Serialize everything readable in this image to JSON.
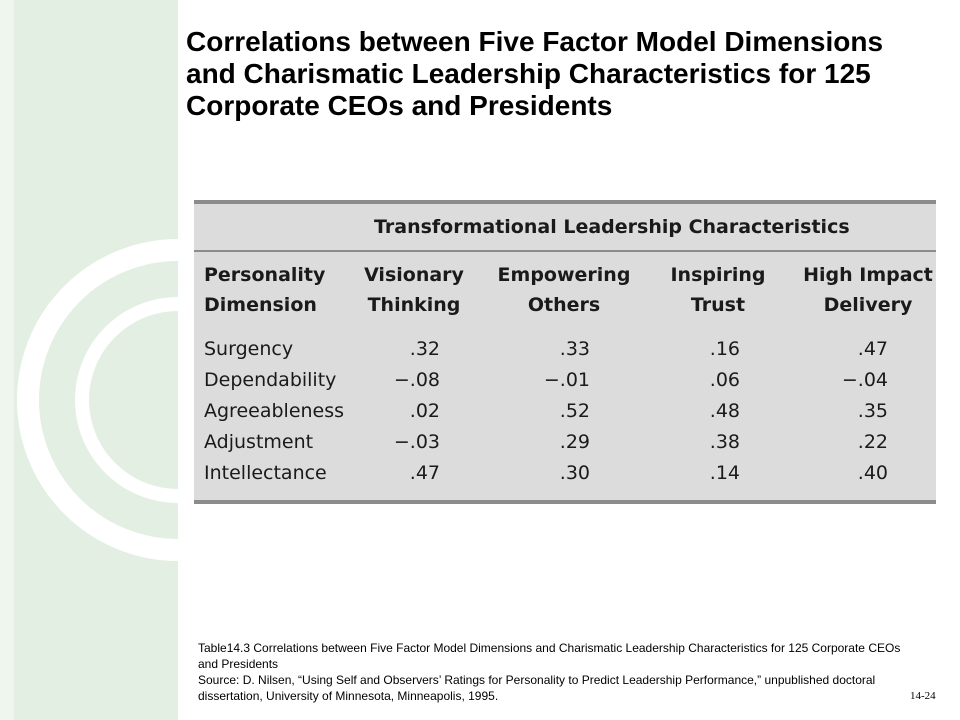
{
  "slide": {
    "title": "Correlations between Five Factor Model Dimensions and Charismatic Leadership Characteristics for 125 Corporate CEOs and Presidents",
    "page_number": "14-24",
    "colors": {
      "side_band": "#e3efe3",
      "side_arcs": "#ffffff",
      "table_bg": "#dcdcdc",
      "table_rule": "#8c8c8c"
    }
  },
  "table": {
    "group_header": "Transformational Leadership Characteristics",
    "columns": [
      {
        "line1": "Personality",
        "line2": "Dimension"
      },
      {
        "line1": "Visionary",
        "line2": "Thinking"
      },
      {
        "line1": "Empowering",
        "line2": "Others"
      },
      {
        "line1": "Inspiring",
        "line2": "Trust"
      },
      {
        "line1": "High Impact",
        "line2": "Delivery"
      }
    ],
    "rows": [
      {
        "dimension": "Surgency",
        "values": [
          ".32",
          ".33",
          ".16",
          ".47"
        ]
      },
      {
        "dimension": "Dependability",
        "values": [
          "−.08",
          "−.01",
          ".06",
          "−.04"
        ]
      },
      {
        "dimension": "Agreeableness",
        "values": [
          ".02",
          ".52",
          ".48",
          ".35"
        ]
      },
      {
        "dimension": "Adjustment",
        "values": [
          "−.03",
          ".29",
          ".38",
          ".22"
        ]
      },
      {
        "dimension": "Intellectance",
        "values": [
          ".47",
          ".30",
          ".14",
          ".40"
        ]
      }
    ]
  },
  "caption": {
    "line1": "Table14.3 Correlations between Five Factor Model Dimensions and Charismatic Leadership Characteristics for 125 Corporate CEOs and Presidents",
    "line2": "Source: D. Nilsen, “Using Self and Observers’ Ratings for Personality to Predict Leadership Performance,” unpublished doctoral dissertation, University of Minnesota, Minneapolis, 1995."
  }
}
